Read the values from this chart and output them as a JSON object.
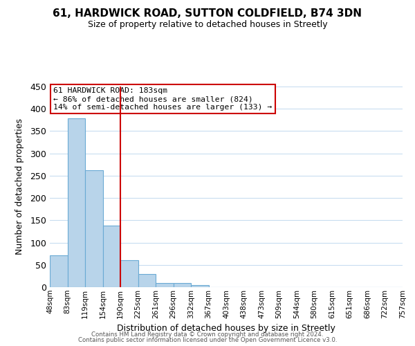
{
  "title": "61, HARDWICK ROAD, SUTTON COLDFIELD, B74 3DN",
  "subtitle": "Size of property relative to detached houses in Streetly",
  "xlabel": "Distribution of detached houses by size in Streetly",
  "ylabel": "Number of detached properties",
  "bar_values": [
    72,
    378,
    262,
    138,
    60,
    30,
    10,
    10,
    5,
    0,
    0,
    0,
    0,
    0,
    0,
    0,
    0,
    0,
    0,
    0
  ],
  "bar_labels": [
    "48sqm",
    "83sqm",
    "119sqm",
    "154sqm",
    "190sqm",
    "225sqm",
    "261sqm",
    "296sqm",
    "332sqm",
    "367sqm",
    "403sqm",
    "438sqm",
    "473sqm",
    "509sqm",
    "544sqm",
    "580sqm",
    "615sqm",
    "651sqm",
    "686sqm",
    "722sqm",
    "757sqm"
  ],
  "bar_color": "#b8d4ea",
  "bar_edge_color": "#6aaad4",
  "highlight_line_color": "#cc0000",
  "annotation_line1": "61 HARDWICK ROAD: 183sqm",
  "annotation_line2": "← 86% of detached houses are smaller (824)",
  "annotation_line3": "14% of semi-detached houses are larger (133) →",
  "annotation_box_color": "#ffffff",
  "annotation_box_edge_color": "#cc0000",
  "ylim": [
    0,
    450
  ],
  "yticks": [
    0,
    50,
    100,
    150,
    200,
    250,
    300,
    350,
    400,
    450
  ],
  "footer1": "Contains HM Land Registry data © Crown copyright and database right 2024.",
  "footer2": "Contains public sector information licensed under the Open Government Licence v3.0.",
  "background_color": "#ffffff",
  "grid_color": "#c8ddf0"
}
